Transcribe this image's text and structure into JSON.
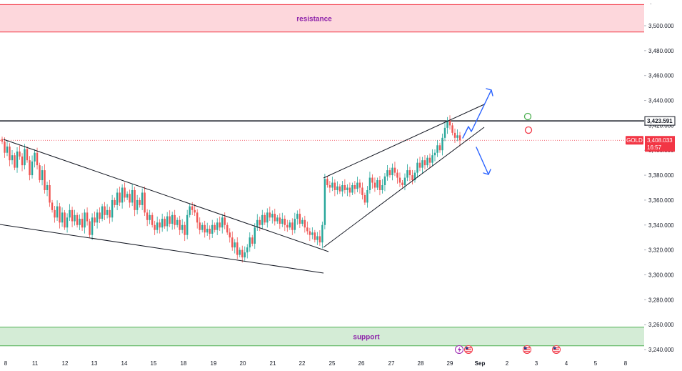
{
  "chart_data": {
    "type": "candlestick",
    "symbol": "GOLD",
    "colors": {
      "up": "#26a69a",
      "down": "#ef5350",
      "resistance_fill": "#fdd7dc",
      "resistance_line": "#f23645",
      "support_fill": "#d4ecd6",
      "support_line": "#4caf50",
      "label": "#8e24aa",
      "trendline": "#131722",
      "arrow": "#2962ff"
    },
    "y_axis": {
      "ticks": [
        "3,500.000",
        "3,480.000",
        "3,460.000",
        "3,440.000",
        "3,420.000",
        "3,400.000",
        "3,380.000",
        "3,360.000",
        "3,340.000",
        "3,320.000",
        "3,300.000",
        "3,280.000",
        "3,260.000",
        "3,240.000"
      ],
      "tick_values": [
        3500,
        3480,
        3460,
        3440,
        3420,
        3400,
        3380,
        3360,
        3340,
        3320,
        3300,
        3280,
        3260,
        3240
      ],
      "range": [
        3236,
        3518
      ]
    },
    "x_axis": {
      "ticks": [
        "8",
        "11",
        "12",
        "13",
        "14",
        "15",
        "18",
        "19",
        "20",
        "21",
        "22",
        "25",
        "26",
        "27",
        "28",
        "29",
        "Sep",
        "2",
        "3",
        "4",
        "5",
        "8"
      ]
    },
    "zones": {
      "resistance": {
        "label": "resistance",
        "from": 3495,
        "to": 3517
      },
      "support": {
        "label": "support",
        "from": 3243,
        "to": 3258
      }
    },
    "levels": {
      "horizontal": {
        "price": 3423.591,
        "label": "3,423.591"
      },
      "current": {
        "price": 3408.033,
        "label": "3,408.033",
        "countdown": "16:57",
        "symbol": "GOLD"
      }
    },
    "candles_close": [
      3407,
      3398,
      3403,
      3392,
      3396,
      3386,
      3399,
      3395,
      3388,
      3401,
      3392,
      3380,
      3391,
      3398,
      3388,
      3376,
      3384,
      3368,
      3372,
      3358,
      3352,
      3346,
      3355,
      3342,
      3350,
      3338,
      3346,
      3352,
      3343,
      3348,
      3340,
      3345,
      3338,
      3350,
      3343,
      3332,
      3346,
      3342,
      3350,
      3345,
      3355,
      3348,
      3352,
      3346,
      3360,
      3356,
      3366,
      3358,
      3370,
      3362,
      3365,
      3358,
      3368,
      3352,
      3360,
      3356,
      3366,
      3350,
      3344,
      3348,
      3340,
      3336,
      3342,
      3338,
      3345,
      3339,
      3347,
      3341,
      3348,
      3340,
      3344,
      3336,
      3340,
      3332,
      3348,
      3355,
      3352,
      3350,
      3342,
      3336,
      3340,
      3334,
      3337,
      3333,
      3340,
      3336,
      3342,
      3338,
      3346,
      3340,
      3334,
      3330,
      3322,
      3326,
      3316,
      3320,
      3314,
      3318,
      3322,
      3330,
      3325,
      3338,
      3344,
      3340,
      3348,
      3342,
      3350,
      3346,
      3349,
      3343,
      3346,
      3341,
      3345,
      3340,
      3338,
      3342,
      3336,
      3345,
      3349,
      3341,
      3344,
      3338,
      3335,
      3332,
      3334,
      3328,
      3331,
      3326,
      3340,
      3377,
      3372,
      3370,
      3374,
      3368,
      3371,
      3367,
      3372,
      3368,
      3370,
      3366,
      3372,
      3369,
      3374,
      3370,
      3364,
      3358,
      3368,
      3378,
      3374,
      3370,
      3376,
      3368,
      3372,
      3379,
      3384,
      3380,
      3386,
      3382,
      3378,
      3374,
      3372,
      3378,
      3384,
      3380,
      3376,
      3382,
      3390,
      3386,
      3392,
      3388,
      3394,
      3390,
      3396,
      3398,
      3404,
      3400,
      3410,
      3418,
      3424,
      3420,
      3414,
      3410,
      3412,
      3408
    ]
  },
  "annotations": {
    "event_icons": [
      "lightning-event-icon",
      "us-flag-event-icon"
    ]
  }
}
